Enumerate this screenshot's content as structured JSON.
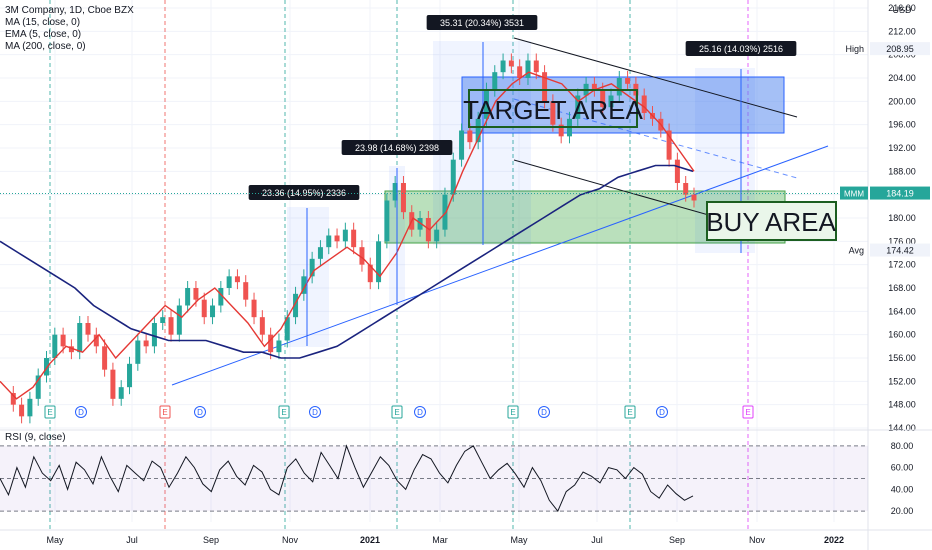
{
  "legend": {
    "symbol": "3M Company, 1D, Cboe BZX",
    "lines": [
      "MA (15, close, 0)",
      "EMA (5, close, 0)",
      "MA (200, close, 0)"
    ]
  },
  "rsi_legend": "RSI (9, close)",
  "chart_data": [
    {
      "type": "line",
      "title": "",
      "currency": "USD",
      "x_tick_labels": [
        "May",
        "Jul",
        "Sep",
        "Nov",
        "2021",
        "Mar",
        "May",
        "Jul",
        "Sep",
        "Nov",
        "2022"
      ],
      "y_tick_labels": [
        "144.00",
        "148.00",
        "152.00",
        "156.00",
        "160.00",
        "164.00",
        "168.00",
        "172.00",
        "176.00",
        "180.00",
        "184.00",
        "188.00",
        "192.00",
        "196.00",
        "200.00",
        "204.00",
        "208.00",
        "212.00",
        "216.00"
      ],
      "ylim": [
        144,
        216
      ],
      "price_labels": {
        "high": {
          "label": "High",
          "value": "208.95"
        },
        "last": {
          "label": "MMM",
          "value": "184.19"
        },
        "avg": {
          "label": "Avg",
          "value": "174.42"
        }
      },
      "series": [
        {
          "values": [
            150,
            148,
            146,
            149,
            153,
            156,
            160,
            158,
            157,
            162,
            160,
            158,
            154,
            149,
            151,
            155,
            159,
            158,
            162,
            163,
            160,
            165,
            168,
            166,
            163,
            165,
            168,
            170,
            169,
            166,
            163,
            160,
            157,
            159,
            163,
            167,
            170,
            173,
            175,
            177,
            176,
            178,
            175,
            172,
            169,
            176,
            183,
            186,
            181,
            178,
            180,
            176,
            178,
            184,
            190,
            195,
            193,
            197,
            202,
            205,
            207,
            206,
            204,
            207,
            205,
            200,
            196,
            194,
            197,
            201,
            203,
            202,
            199,
            201,
            204,
            203,
            201,
            198,
            197,
            195,
            190,
            186,
            184,
            183
          ]
        },
        {
          "values": [
            176,
            174,
            172,
            170,
            168,
            165,
            163,
            161,
            160,
            159,
            159,
            159,
            158,
            157,
            157,
            156,
            156,
            157,
            158,
            160,
            162,
            164,
            166,
            168,
            170,
            172,
            174,
            176,
            178,
            180,
            182,
            184,
            185,
            187,
            188,
            189,
            189,
            188
          ]
        },
        {
          "values": [
            152,
            149,
            151,
            155,
            158,
            157,
            160,
            156,
            159,
            162,
            165,
            163,
            166,
            168,
            165,
            162,
            158,
            161,
            166,
            171,
            173,
            175,
            173,
            170,
            174,
            180,
            178,
            181,
            188,
            194,
            200,
            203,
            205,
            204,
            203,
            200,
            202,
            203,
            201,
            199,
            196,
            192,
            188
          ]
        }
      ],
      "annotations": [
        {
          "text": "23.36 (14.95%) 2336"
        },
        {
          "text": "23.98 (14.68%) 2398"
        },
        {
          "text": "35.31 (20.34%) 3531"
        },
        {
          "text": "25.16 (14.03%) 2516"
        },
        {
          "text": "TARGET AREA"
        },
        {
          "text": "BUY AREA"
        }
      ],
      "event_markers": [
        "E",
        "D",
        "E",
        "D",
        "E",
        "D",
        "E",
        "D",
        "E",
        "D",
        "E",
        "D",
        "E"
      ]
    },
    {
      "type": "line",
      "title": "RSI (9, close)",
      "y_tick_labels": [
        "20.00",
        "40.00",
        "60.00",
        "80.00"
      ],
      "ylim": [
        10,
        90
      ],
      "values": [
        50,
        35,
        60,
        42,
        70,
        55,
        48,
        62,
        40,
        65,
        58,
        45,
        70,
        52,
        38,
        62,
        55,
        48,
        66,
        60,
        42,
        55,
        70,
        60,
        45,
        38,
        58,
        66,
        52,
        44,
        62,
        56,
        40,
        35,
        60,
        68,
        55,
        47,
        74,
        62,
        50,
        80,
        60,
        42,
        56,
        70,
        62,
        48,
        40,
        58,
        72,
        68,
        55,
        46,
        62,
        75,
        80,
        65,
        50,
        58,
        64,
        54,
        42,
        60,
        48,
        30,
        20,
        38,
        44,
        56,
        52,
        46,
        60,
        58,
        50,
        60,
        54,
        38,
        32,
        44,
        36,
        30,
        34
      ]
    }
  ]
}
